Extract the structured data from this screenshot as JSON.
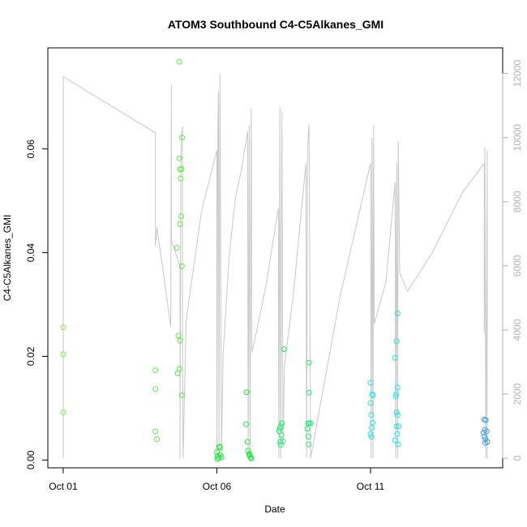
{
  "chart_data": {
    "type": "scatter",
    "title": "ATOM3 Southbound C4-C5Alkanes_GMI",
    "xlabel": "Date",
    "ylabel": "C4-C5Alkanes_GMI",
    "x_unit": "days since Oct 01",
    "xlim": [
      -0.5,
      14.3
    ],
    "ylim": [
      -0.0015,
      0.0795
    ],
    "x_ticks": [
      {
        "value": 0,
        "label": "Oct 01"
      },
      {
        "value": 5,
        "label": "Oct 06"
      },
      {
        "value": 10,
        "label": "Oct 11"
      }
    ],
    "y_ticks": [
      0.0,
      0.02,
      0.04,
      0.06
    ],
    "y_tick_labels": [
      "0.00",
      "0.02",
      "0.04",
      "0.06"
    ],
    "y2lim": [
      -300,
      12800
    ],
    "y2_ticks": [
      0,
      2000,
      4000,
      6000,
      8000,
      10000,
      12000
    ],
    "colors": {
      "altitude_line": "#c8c8c8",
      "axis_right": "#b3b3b3"
    },
    "series": [
      {
        "color": "#7cee3c",
        "points": [
          [
            0.0,
            0.0256
          ],
          [
            0.0,
            0.0204
          ],
          [
            0.0,
            0.0092
          ]
        ]
      },
      {
        "color": "#5aee3c",
        "points": [
          [
            3.0,
            0.0173
          ],
          [
            3.0,
            0.0137
          ],
          [
            3.0,
            0.0055
          ],
          [
            3.05,
            0.004
          ],
          [
            3.78,
            0.0768
          ],
          [
            3.78,
            0.0582
          ],
          [
            3.8,
            0.0561
          ],
          [
            3.85,
            0.0561
          ],
          [
            3.87,
            0.0622
          ],
          [
            3.82,
            0.0543
          ],
          [
            3.84,
            0.047
          ],
          [
            3.8,
            0.0455
          ],
          [
            3.7,
            0.0409
          ],
          [
            3.86,
            0.0374
          ],
          [
            3.75,
            0.024
          ],
          [
            3.8,
            0.023
          ],
          [
            3.78,
            0.0176
          ],
          [
            3.73,
            0.0167
          ],
          [
            3.86,
            0.0125
          ]
        ]
      },
      {
        "color": "#1cee3c",
        "points": [
          [
            5.0,
            0.0015
          ],
          [
            5.03,
            0.0008
          ],
          [
            5.06,
            0.0004
          ],
          [
            5.08,
            0.0026
          ],
          [
            5.1,
            0.0024
          ],
          [
            5.12,
            0.0009
          ],
          [
            5.15,
            0.0005
          ],
          [
            5.02,
            0.0002
          ],
          [
            5.97,
            0.0131
          ],
          [
            5.95,
            0.0069
          ],
          [
            6.0,
            0.0035
          ],
          [
            6.02,
            0.0018
          ],
          [
            6.05,
            0.0012
          ],
          [
            6.08,
            0.0008
          ],
          [
            6.1,
            0.0005
          ],
          [
            6.12,
            0.0003
          ],
          [
            6.06,
            0.001
          ]
        ]
      },
      {
        "color": "#1cee6c",
        "points": [
          [
            7.05,
            0.0061
          ],
          [
            7.08,
            0.0065
          ],
          [
            7.12,
            0.0071
          ],
          [
            7.03,
            0.0056
          ],
          [
            7.1,
            0.0048
          ],
          [
            7.06,
            0.0035
          ],
          [
            7.08,
            0.0029
          ],
          [
            7.15,
            0.0036
          ],
          [
            7.18,
            0.0214
          ],
          [
            8.0,
            0.0188
          ],
          [
            8.0,
            0.013
          ],
          [
            8.0,
            0.0071
          ],
          [
            8.05,
            0.0071
          ],
          [
            7.97,
            0.0071
          ],
          [
            7.95,
            0.006
          ],
          [
            7.98,
            0.0045
          ],
          [
            7.99,
            0.003
          ]
        ]
      },
      {
        "color": "#1ce6e6",
        "points": [
          [
            10.0,
            0.0149
          ],
          [
            10.05,
            0.0127
          ],
          [
            10.08,
            0.0125
          ],
          [
            10.0,
            0.011
          ],
          [
            10.02,
            0.0087
          ],
          [
            10.07,
            0.0072
          ],
          [
            10.04,
            0.0062
          ],
          [
            10.0,
            0.005
          ],
          [
            10.03,
            0.0045
          ],
          [
            10.8,
            0.0197
          ],
          [
            10.85,
            0.0229
          ],
          [
            10.88,
            0.0283
          ],
          [
            10.88,
            0.014
          ],
          [
            10.84,
            0.0127
          ],
          [
            10.82,
            0.0123
          ],
          [
            10.85,
            0.0092
          ],
          [
            10.88,
            0.0087
          ],
          [
            10.92,
            0.0065
          ],
          [
            10.85,
            0.0065
          ],
          [
            10.87,
            0.005
          ],
          [
            10.8,
            0.0038
          ],
          [
            10.9,
            0.003
          ]
        ]
      },
      {
        "color": "#3ca0e6",
        "points": [
          [
            13.7,
            0.0078
          ],
          [
            13.75,
            0.0077
          ],
          [
            13.72,
            0.0058
          ],
          [
            13.68,
            0.0053
          ],
          [
            13.78,
            0.0055
          ],
          [
            13.7,
            0.0045
          ],
          [
            13.74,
            0.004
          ],
          [
            13.8,
            0.0035
          ],
          [
            13.73,
            0.0033
          ]
        ]
      }
    ],
    "altitude_line": [
      [
        0,
        0
      ],
      [
        0,
        11900
      ],
      [
        3.0,
        10150
      ],
      [
        3.0,
        6600
      ],
      [
        3.05,
        7200
      ],
      [
        3.3,
        5500
      ],
      [
        3.5,
        4100
      ],
      [
        3.52,
        11650
      ],
      [
        3.52,
        6800
      ],
      [
        3.8,
        6000
      ],
      [
        3.8,
        0
      ],
      [
        3.83,
        9400
      ],
      [
        3.85,
        10050
      ],
      [
        3.88,
        10350
      ],
      [
        3.88,
        4800
      ],
      [
        3.9,
        0
      ],
      [
        4.0,
        4300
      ],
      [
        4.5,
        7700
      ],
      [
        5.0,
        9600
      ],
      [
        5.0,
        0
      ],
      [
        5.03,
        10200
      ],
      [
        5.05,
        11450
      ],
      [
        5.07,
        0
      ],
      [
        5.1,
        12000
      ],
      [
        5.15,
        0
      ],
      [
        5.2,
        3200
      ],
      [
        5.4,
        6300
      ],
      [
        5.6,
        8100
      ],
      [
        5.8,
        9000
      ],
      [
        6.0,
        10200
      ],
      [
        6.02,
        0
      ],
      [
        6.05,
        10400
      ],
      [
        6.08,
        0
      ],
      [
        6.1,
        6800
      ],
      [
        6.12,
        10900
      ],
      [
        6.14,
        3300
      ],
      [
        6.3,
        4000
      ],
      [
        6.6,
        5400
      ],
      [
        7.0,
        7800
      ],
      [
        7.02,
        0
      ],
      [
        7.05,
        10950
      ],
      [
        7.08,
        0
      ],
      [
        7.12,
        10800
      ],
      [
        7.15,
        500
      ],
      [
        7.2,
        2900
      ],
      [
        7.5,
        5200
      ],
      [
        7.9,
        9200
      ],
      [
        7.92,
        0
      ],
      [
        7.95,
        9700
      ],
      [
        8.0,
        10400
      ],
      [
        8.05,
        0
      ],
      [
        9.0,
        5000
      ],
      [
        10.0,
        9200
      ],
      [
        10.02,
        0
      ],
      [
        10.05,
        10000
      ],
      [
        10.08,
        0
      ],
      [
        10.1,
        10400
      ],
      [
        10.12,
        4200
      ],
      [
        10.5,
        5500
      ],
      [
        10.8,
        8600
      ],
      [
        10.82,
        0
      ],
      [
        10.85,
        9200
      ],
      [
        10.88,
        0
      ],
      [
        10.9,
        9900
      ],
      [
        10.95,
        5800
      ],
      [
        11.2,
        5200
      ],
      [
        12.0,
        6400
      ],
      [
        13.0,
        8300
      ],
      [
        13.7,
        9200
      ],
      [
        13.7,
        3900
      ],
      [
        13.72,
        9700
      ],
      [
        13.75,
        0
      ],
      [
        13.8,
        9600
      ],
      [
        13.8,
        0
      ]
    ]
  }
}
